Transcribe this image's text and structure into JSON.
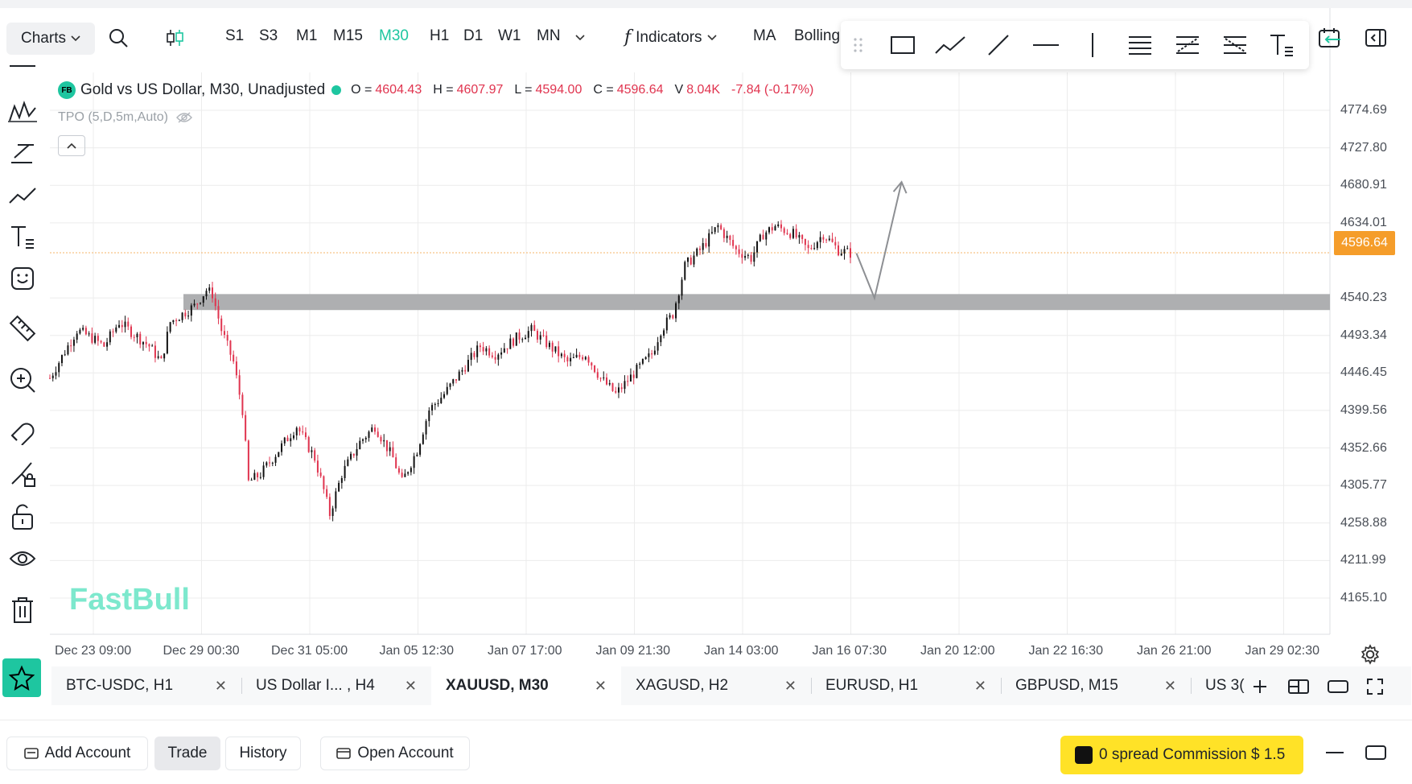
{
  "toolbar": {
    "charts_label": "Charts",
    "timeframes": [
      "S1",
      "S3",
      "M1",
      "M15",
      "M30",
      "H1",
      "D1",
      "W1",
      "MN"
    ],
    "active_timeframe": "M30",
    "indicators_label": "Indicators",
    "ma_label": "MA",
    "bollinger_label": "Bolling"
  },
  "legend": {
    "badge": "FB",
    "title": "Gold vs US Dollar, M30, Unadjusted",
    "open_key": "O =",
    "open": "4604.43",
    "high_key": "H =",
    "high": "4607.97",
    "low_key": "L =",
    "low": "4594.00",
    "close_key": "C =",
    "close": "4596.64",
    "vol_key": "V",
    "volume": "8.04K",
    "change": "-7.84 (-0.17%)",
    "tpo": "TPO (5,D,5m,Auto)"
  },
  "watermark": "FastBull",
  "chart_data": {
    "type": "candlestick",
    "symbol": "XAUUSD",
    "y_ticks": [
      "4774.69",
      "4727.80",
      "4680.91",
      "4634.01",
      "4540.23",
      "4493.34",
      "4446.45",
      "4399.56",
      "4352.66",
      "4305.77",
      "4258.88",
      "4211.99",
      "4165.10"
    ],
    "x_ticks": [
      "Dec 23 09:00",
      "Dec 29 00:30",
      "Dec 31 05:00",
      "Jan 05 12:30",
      "Jan 07 17:00",
      "Jan 09 21:30",
      "Jan 14 03:00",
      "Jan 16 07:30",
      "Jan 20 12:00",
      "Jan 22 16:30",
      "Jan 26 21:00",
      "Jan 29 02:30"
    ],
    "ylim": [
      4140,
      4800
    ],
    "current_price": "4596.64",
    "zone": [
      4525,
      4545
    ],
    "path_points": [
      [
        4440,
        0
      ],
      [
        4460,
        3
      ],
      [
        4500,
        9
      ],
      [
        4490,
        14
      ],
      [
        4480,
        18
      ],
      [
        4510,
        23
      ],
      [
        4495,
        28
      ],
      [
        4480,
        33
      ],
      [
        4460,
        37
      ],
      [
        4510,
        40
      ],
      [
        4520,
        44
      ],
      [
        4530,
        48
      ],
      [
        4550,
        52
      ],
      [
        4545,
        54
      ],
      [
        4500,
        57
      ],
      [
        4460,
        61
      ],
      [
        4400,
        64
      ],
      [
        4310,
        66
      ],
      [
        4320,
        70
      ],
      [
        4350,
        76
      ],
      [
        4380,
        82
      ],
      [
        4340,
        88
      ],
      [
        4300,
        91
      ],
      [
        4270,
        93
      ],
      [
        4320,
        97
      ],
      [
        4360,
        103
      ],
      [
        4380,
        108
      ],
      [
        4340,
        114
      ],
      [
        4310,
        117
      ],
      [
        4350,
        122
      ],
      [
        4400,
        126
      ],
      [
        4420,
        131
      ],
      [
        4450,
        137
      ],
      [
        4480,
        143
      ],
      [
        4470,
        148
      ],
      [
        4490,
        155
      ],
      [
        4500,
        160
      ],
      [
        4480,
        166
      ],
      [
        4460,
        172
      ],
      [
        4470,
        178
      ],
      [
        4440,
        183
      ],
      [
        4420,
        188
      ],
      [
        4450,
        195
      ],
      [
        4470,
        200
      ],
      [
        4500,
        203
      ],
      [
        4520,
        207
      ],
      [
        4580,
        211
      ],
      [
        4600,
        216
      ],
      [
        4630,
        222
      ],
      [
        4600,
        228
      ],
      [
        4590,
        233
      ],
      [
        4620,
        237
      ],
      [
        4630,
        241
      ],
      [
        4620,
        247
      ],
      [
        4600,
        252
      ],
      [
        4620,
        257
      ],
      [
        4600,
        262
      ],
      [
        4596,
        266
      ]
    ],
    "projection": [
      [
        4596,
        268
      ],
      [
        4540,
        274
      ],
      [
        4685,
        283
      ]
    ]
  },
  "price_tag": "4596.64",
  "tabs": [
    {
      "label": "BTC-USDC, H1"
    },
    {
      "label": "US Dollar I... , H4"
    },
    {
      "label": "XAUUSD, M30"
    },
    {
      "label": "XAGUSD, H2"
    },
    {
      "label": "EURUSD, H1"
    },
    {
      "label": "GBPUSD, M15"
    }
  ],
  "tab_overflow": "US 3(",
  "bottom": {
    "add_account": "Add Account",
    "trade": "Trade",
    "history": "History",
    "open_account": "Open Account",
    "promo": "0 spread Commission $ 1.5"
  }
}
